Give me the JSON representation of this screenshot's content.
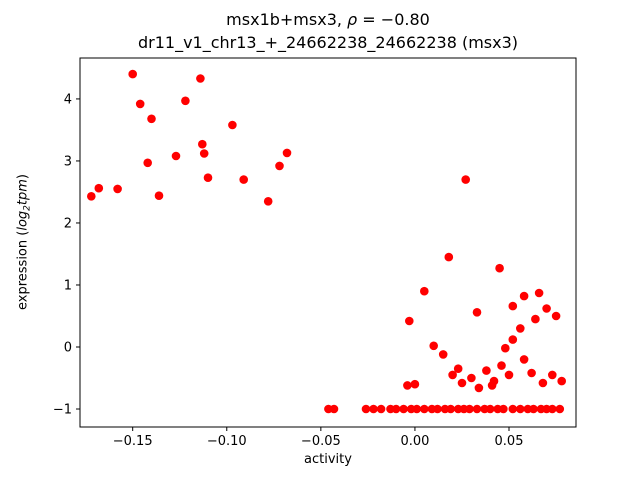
{
  "title": {
    "part1": "msx1b+msx3, ",
    "rho": "ρ",
    "part2": " = −0.80",
    "line2": "dr11_v1_chr13_+_24662238_24662238 (msx3)"
  },
  "xlabel": "activity",
  "ylabel": {
    "prefix": "expression (",
    "log": "log",
    "sub": "2",
    "var": "tpm",
    "suffix": ")"
  },
  "chart_data": {
    "type": "scatter",
    "title": "msx1b+msx3, ρ = −0.80",
    "subtitle": "dr11_v1_chr13_+_24662238_24662238 (msx3)",
    "xlabel": "activity",
    "ylabel": "expression (log2 tpm)",
    "marker_color": "#ff0000",
    "marker_radius": 4.3,
    "grid": false,
    "legend": "none",
    "xlim": [
      -0.178,
      0.0856
    ],
    "ylim": [
      -1.29,
      4.66
    ],
    "xticks": {
      "values": [
        -0.15,
        -0.1,
        -0.05,
        0.0,
        0.05
      ],
      "labels": [
        "−0.15",
        "−0.10",
        "−0.05",
        "0.00",
        "0.05"
      ]
    },
    "yticks": {
      "values": [
        -1,
        0,
        1,
        2,
        3,
        4
      ],
      "labels": [
        "−1",
        "0",
        "1",
        "2",
        "3",
        "4"
      ]
    },
    "points": [
      [
        -0.172,
        2.43
      ],
      [
        -0.168,
        2.56
      ],
      [
        -0.158,
        2.55
      ],
      [
        -0.15,
        4.4
      ],
      [
        -0.146,
        3.92
      ],
      [
        -0.14,
        3.68
      ],
      [
        -0.142,
        2.97
      ],
      [
        -0.136,
        2.44
      ],
      [
        -0.127,
        3.08
      ],
      [
        -0.122,
        3.97
      ],
      [
        -0.114,
        4.33
      ],
      [
        -0.113,
        3.27
      ],
      [
        -0.112,
        3.12
      ],
      [
        -0.11,
        2.73
      ],
      [
        -0.097,
        3.58
      ],
      [
        -0.091,
        2.7
      ],
      [
        -0.078,
        2.35
      ],
      [
        -0.072,
        2.92
      ],
      [
        -0.068,
        3.13
      ],
      [
        0.027,
        2.7
      ],
      [
        0.018,
        1.45
      ],
      [
        0.045,
        1.27
      ],
      [
        -0.003,
        0.42
      ],
      [
        0.005,
        0.9
      ],
      [
        0.033,
        0.56
      ],
      [
        0.052,
        0.66
      ],
      [
        0.058,
        0.82
      ],
      [
        0.066,
        0.87
      ],
      [
        0.07,
        0.62
      ],
      [
        0.064,
        0.45
      ],
      [
        0.075,
        0.5
      ],
      [
        0.056,
        0.3
      ],
      [
        0.052,
        0.12
      ],
      [
        0.048,
        -0.02
      ],
      [
        0.01,
        0.02
      ],
      [
        0.015,
        -0.12
      ],
      [
        0.02,
        -0.45
      ],
      [
        0.025,
        -0.58
      ],
      [
        0.03,
        -0.5
      ],
      [
        0.034,
        -0.66
      ],
      [
        0.038,
        -0.38
      ],
      [
        0.042,
        -0.55
      ],
      [
        0.046,
        -0.3
      ],
      [
        0.05,
        -0.45
      ],
      [
        0.058,
        -0.2
      ],
      [
        0.062,
        -0.42
      ],
      [
        0.068,
        -0.58
      ],
      [
        0.073,
        -0.45
      ],
      [
        0.078,
        -0.55
      ],
      [
        -0.004,
        -0.62
      ],
      [
        0.0,
        -0.6
      ],
      [
        0.023,
        -0.35
      ],
      [
        0.041,
        -0.62
      ],
      [
        -0.046,
        -1
      ],
      [
        -0.043,
        -1
      ],
      [
        -0.026,
        -1
      ],
      [
        -0.022,
        -1
      ],
      [
        -0.018,
        -1
      ],
      [
        -0.013,
        -1
      ],
      [
        -0.01,
        -1
      ],
      [
        -0.006,
        -1
      ],
      [
        -0.002,
        -1
      ],
      [
        0.001,
        -1
      ],
      [
        0.005,
        -1
      ],
      [
        0.009,
        -1
      ],
      [
        0.012,
        -1
      ],
      [
        0.016,
        -1
      ],
      [
        0.019,
        -1
      ],
      [
        0.023,
        -1
      ],
      [
        0.026,
        -1
      ],
      [
        0.029,
        -1
      ],
      [
        0.033,
        -1
      ],
      [
        0.037,
        -1
      ],
      [
        0.04,
        -1
      ],
      [
        0.044,
        -1
      ],
      [
        0.047,
        -1
      ],
      [
        0.052,
        -1
      ],
      [
        0.056,
        -1
      ],
      [
        0.06,
        -1
      ],
      [
        0.063,
        -1
      ],
      [
        0.067,
        -1
      ],
      [
        0.07,
        -1
      ],
      [
        0.073,
        -1
      ],
      [
        0.077,
        -1
      ]
    ]
  }
}
